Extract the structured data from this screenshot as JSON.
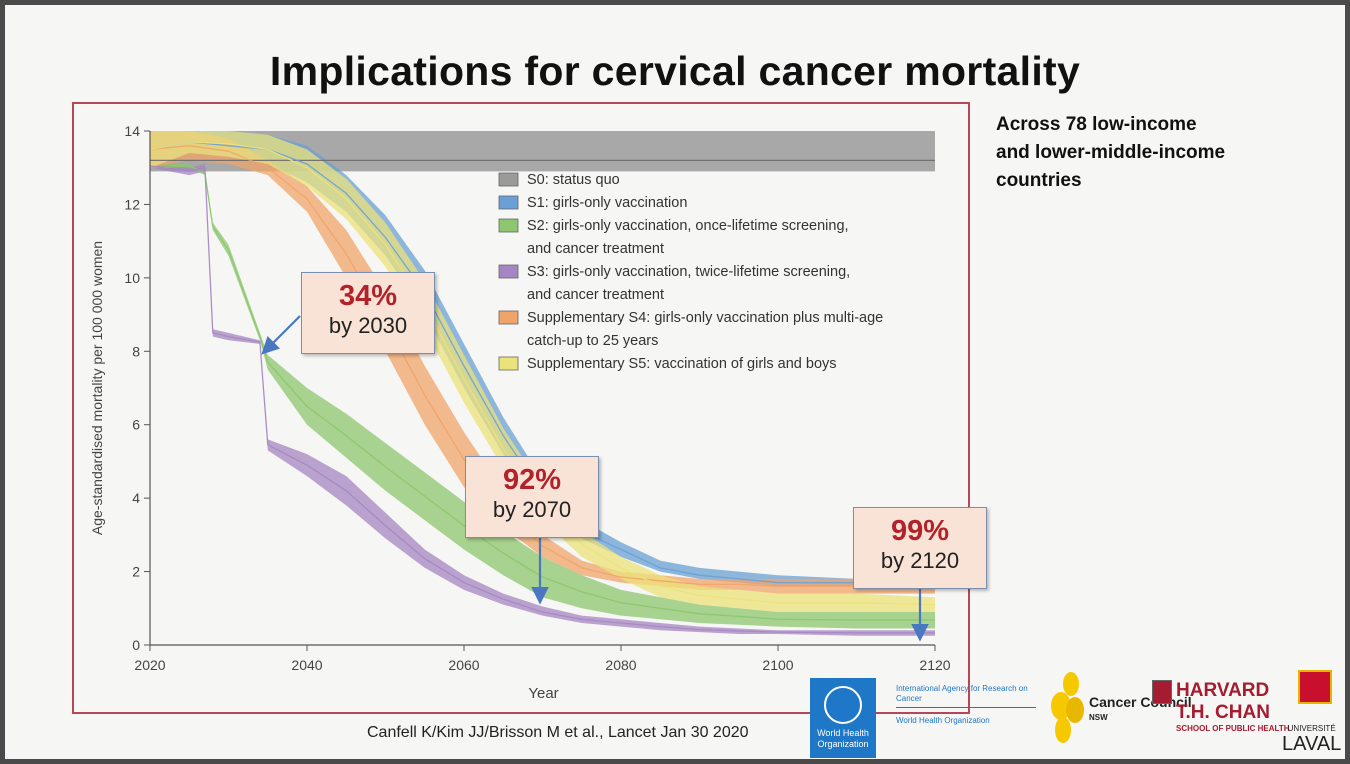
{
  "slide": {
    "title": "Implications for cervical cancer mortality",
    "side_note": "Across 78 low-income and lower-middle-income countries",
    "citation": "Canfell K/Kim JJ/Brisson M et al., Lancet Jan 30 2020"
  },
  "callouts": [
    {
      "pct": "34%",
      "year": "by 2030"
    },
    {
      "pct": "92%",
      "year": "by 2070"
    },
    {
      "pct": "99%",
      "year": "by 2120"
    }
  ],
  "logos": {
    "who": "World Health Organization",
    "iarc": "International Agency for Research on Cancer",
    "iarc_who": "World Health Organization",
    "cancer_council": "Cancer Council",
    "cancer_council_sub": "NSW",
    "harvard_1": "HARVARD",
    "harvard_2": "T.H. CHAN",
    "harvard_3": "SCHOOL OF PUBLIC HEALTH",
    "laval_1": "UNIVERSITÉ",
    "laval_2": "LAVAL"
  },
  "chart_data": {
    "type": "area",
    "xlabel": "Year",
    "ylabel": "Age-standardised mortality per 100 000 women",
    "xlim": [
      2020,
      2120
    ],
    "ylim": [
      0,
      14
    ],
    "xticks": [
      2020,
      2040,
      2060,
      2080,
      2100,
      2120
    ],
    "yticks": [
      0,
      2,
      4,
      6,
      8,
      10,
      12,
      14
    ],
    "grid": false,
    "legend_position": "top-right",
    "series": [
      {
        "name": "S0: status quo",
        "color": "#9a9a9a",
        "x": [
          2020,
          2120
        ],
        "lower": [
          12.9,
          12.9
        ],
        "upper": [
          14.0,
          14.0
        ],
        "median": [
          13.2,
          13.2
        ]
      },
      {
        "name": "S1: girls-only vaccination",
        "color": "#6aa0d6",
        "x": [
          2020,
          2025,
          2030,
          2035,
          2040,
          2045,
          2050,
          2055,
          2060,
          2065,
          2070,
          2075,
          2080,
          2085,
          2090,
          2095,
          2100,
          2110,
          2120
        ],
        "lower": [
          13.0,
          13.4,
          13.3,
          13.1,
          12.6,
          11.8,
          10.6,
          9.0,
          7.0,
          5.2,
          3.8,
          2.9,
          2.4,
          2.0,
          1.8,
          1.7,
          1.6,
          1.6,
          1.6
        ],
        "upper": [
          14.0,
          14.0,
          14.0,
          13.9,
          13.6,
          12.8,
          11.7,
          10.2,
          8.2,
          6.2,
          4.5,
          3.4,
          2.8,
          2.3,
          2.1,
          2.0,
          1.9,
          1.8,
          1.8
        ],
        "median": [
          13.5,
          13.7,
          13.6,
          13.5,
          13.1,
          12.3,
          11.1,
          9.6,
          7.6,
          5.7,
          4.1,
          3.1,
          2.6,
          2.1,
          1.9,
          1.8,
          1.7,
          1.7,
          1.7
        ]
      },
      {
        "name": "S2: girls-only vaccination, once-lifetime screening, and cancer treatment",
        "color": "#8cc66e",
        "x": [
          2020,
          2025,
          2027,
          2028,
          2030,
          2034,
          2035,
          2040,
          2045,
          2050,
          2055,
          2060,
          2065,
          2070,
          2075,
          2080,
          2085,
          2090,
          2095,
          2100,
          2110,
          2120
        ],
        "lower": [
          13.0,
          13.0,
          12.8,
          11.3,
          10.6,
          8.3,
          7.5,
          6.0,
          5.1,
          4.2,
          3.4,
          2.6,
          1.9,
          1.3,
          1.0,
          0.8,
          0.7,
          0.6,
          0.55,
          0.5,
          0.45,
          0.45
        ],
        "upper": [
          13.1,
          13.1,
          12.9,
          11.5,
          10.9,
          8.5,
          7.9,
          7.0,
          6.3,
          5.5,
          4.7,
          3.9,
          3.1,
          2.4,
          1.9,
          1.5,
          1.3,
          1.1,
          1.0,
          0.9,
          0.9,
          0.9
        ],
        "median": [
          13.0,
          13.05,
          12.85,
          11.4,
          10.75,
          8.4,
          7.7,
          6.5,
          5.7,
          4.85,
          4.05,
          3.25,
          2.5,
          1.85,
          1.45,
          1.15,
          1.0,
          0.85,
          0.78,
          0.7,
          0.68,
          0.68
        ]
      },
      {
        "name": "S3: girls-only vaccination, twice-lifetime screening, and cancer treatment",
        "color": "#a586c2",
        "x": [
          2020,
          2025,
          2027,
          2028,
          2030,
          2034,
          2035,
          2040,
          2045,
          2050,
          2055,
          2060,
          2065,
          2070,
          2075,
          2080,
          2085,
          2090,
          2095,
          2100,
          2110,
          2120
        ],
        "lower": [
          13.0,
          12.8,
          12.9,
          8.4,
          8.3,
          8.2,
          5.3,
          4.6,
          3.8,
          2.9,
          2.1,
          1.5,
          1.1,
          0.8,
          0.6,
          0.5,
          0.4,
          0.35,
          0.3,
          0.3,
          0.25,
          0.25
        ],
        "upper": [
          13.1,
          13.0,
          13.1,
          8.6,
          8.5,
          8.3,
          5.6,
          5.2,
          4.6,
          3.6,
          2.6,
          1.9,
          1.4,
          1.05,
          0.8,
          0.7,
          0.6,
          0.5,
          0.45,
          0.4,
          0.4,
          0.4
        ],
        "median": [
          13.05,
          12.9,
          13.0,
          8.5,
          8.4,
          8.25,
          5.45,
          4.9,
          4.2,
          3.25,
          2.35,
          1.7,
          1.25,
          0.9,
          0.7,
          0.6,
          0.5,
          0.42,
          0.38,
          0.35,
          0.33,
          0.33
        ]
      },
      {
        "name": "Supplementary S4: girls-only vaccination plus multi-age catch-up to 25 years",
        "color": "#f0a46a",
        "x": [
          2020,
          2025,
          2030,
          2035,
          2040,
          2045,
          2050,
          2055,
          2060,
          2065,
          2070,
          2075,
          2080,
          2085,
          2090,
          2095,
          2100,
          2110,
          2120
        ],
        "lower": [
          13.0,
          13.2,
          13.1,
          12.8,
          11.8,
          10.0,
          8.0,
          6.0,
          4.3,
          3.2,
          2.4,
          1.9,
          1.7,
          1.6,
          1.5,
          1.5,
          1.4,
          1.4,
          1.4
        ],
        "upper": [
          14.0,
          14.0,
          13.8,
          13.2,
          12.5,
          11.3,
          9.6,
          7.6,
          5.8,
          4.2,
          3.0,
          2.3,
          2.0,
          1.9,
          1.8,
          1.8,
          1.8,
          1.8,
          1.8
        ],
        "median": [
          13.5,
          13.6,
          13.45,
          13.0,
          12.15,
          10.65,
          8.8,
          6.8,
          5.05,
          3.7,
          2.7,
          2.1,
          1.85,
          1.75,
          1.65,
          1.65,
          1.6,
          1.6,
          1.6
        ]
      },
      {
        "name": "Supplementary S5: vaccination of girls and boys",
        "color": "#ece27a",
        "x": [
          2020,
          2025,
          2030,
          2035,
          2040,
          2045,
          2050,
          2055,
          2060,
          2065,
          2070,
          2075,
          2080,
          2085,
          2090,
          2095,
          2100,
          2110,
          2120
        ],
        "lower": [
          13.0,
          13.4,
          13.3,
          13.1,
          12.5,
          11.6,
          10.3,
          8.6,
          6.6,
          4.8,
          3.4,
          2.4,
          1.8,
          1.3,
          1.1,
          1.0,
          0.9,
          0.9,
          0.9
        ],
        "upper": [
          14.0,
          14.0,
          14.0,
          13.9,
          13.5,
          12.7,
          11.5,
          9.9,
          7.9,
          5.9,
          4.3,
          3.1,
          2.4,
          1.9,
          1.6,
          1.5,
          1.4,
          1.4,
          1.3
        ],
        "median": [
          13.5,
          13.7,
          13.65,
          13.5,
          13.0,
          12.15,
          10.9,
          9.25,
          7.25,
          5.35,
          3.85,
          2.75,
          2.1,
          1.6,
          1.35,
          1.25,
          1.15,
          1.15,
          1.1
        ]
      }
    ]
  }
}
